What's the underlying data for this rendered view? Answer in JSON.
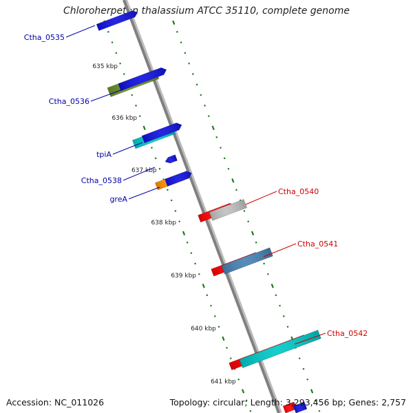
{
  "title": "Chloroherpeton thalassium ATCC 35110, complete genome",
  "footer": {
    "accession": "Accession: NC_011026",
    "summary": "Topology: circular; Length: 3,293,456 bp; Genes: 2,757"
  },
  "tick_labels": [
    "635 kbp",
    "636 kbp",
    "637 kbp",
    "638 kbp",
    "639 kbp",
    "640 kbp",
    "641 kbp"
  ],
  "genes": [
    {
      "name": "Ctha_0535",
      "strand": "forward",
      "color": "#1010e0"
    },
    {
      "name": "Ctha_0536",
      "strand": "forward",
      "color": "#6b8e23"
    },
    {
      "name": "tpiA",
      "strand": "forward",
      "color": "#00c8c8"
    },
    {
      "name": "Ctha_0538",
      "strand": "forward",
      "color": "#1010e0"
    },
    {
      "name": "greA",
      "strand": "forward",
      "color": "#ff8c00"
    },
    {
      "name": "Ctha_0540",
      "strand": "reverse",
      "color": "#ff0000"
    },
    {
      "name": "Ctha_0541",
      "strand": "reverse",
      "color": "#4682b4"
    },
    {
      "name": "Ctha_0542",
      "strand": "reverse",
      "color": "#00c8c8"
    }
  ],
  "colors": {
    "forward_label": "#0000aa",
    "reverse_label": "#cc0000",
    "backbone": "#808080",
    "tick": "#1a7a1a",
    "cds_blue": "#1010e0",
    "cds_red": "#ff0000",
    "cds_grey": "#c0c0c0"
  }
}
